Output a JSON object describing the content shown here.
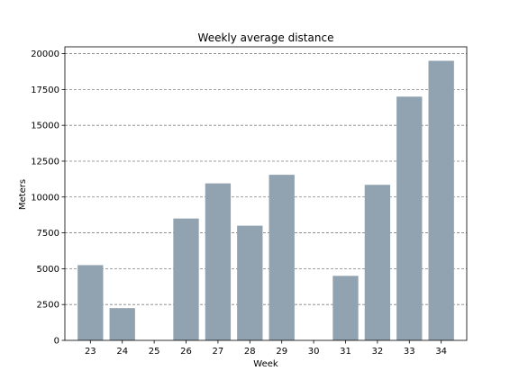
{
  "chart_data": {
    "type": "bar",
    "title": "Weekly average distance",
    "xlabel": "Week",
    "ylabel": "Meters",
    "categories": [
      "23",
      "24",
      "25",
      "26",
      "27",
      "28",
      "29",
      "30",
      "31",
      "32",
      "33",
      "34"
    ],
    "values": [
      5250,
      2250,
      0,
      8500,
      10950,
      8000,
      11550,
      0,
      4500,
      10850,
      17000,
      19500
    ],
    "yticks": [
      0,
      2500,
      5000,
      7500,
      10000,
      12500,
      15000,
      17500,
      20000
    ],
    "ylim": [
      0,
      20475
    ],
    "grid": "horizontal dashed",
    "bar_color": "#91a3b0"
  }
}
